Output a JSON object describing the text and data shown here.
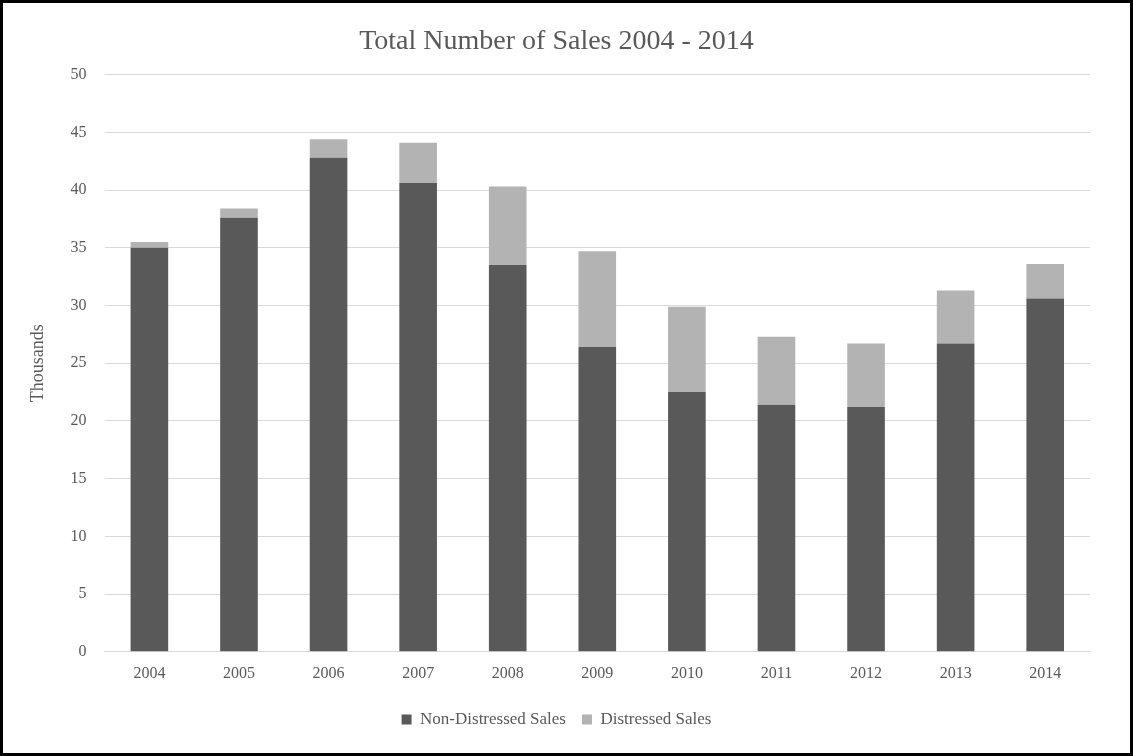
{
  "chart_data": {
    "type": "bar",
    "title": "Total Number of Sales 2004 - 2014",
    "ylabel": "Thousands",
    "categories": [
      "2004",
      "2005",
      "2006",
      "2007",
      "2008",
      "2009",
      "2010",
      "2011",
      "2012",
      "2013",
      "2014"
    ],
    "stacked": true,
    "series": [
      {
        "name": "Non-Distressed Sales",
        "color": "#595959",
        "values": [
          35,
          37.6,
          42.8,
          40.6,
          33.5,
          26.4,
          22.5,
          21.4,
          21.2,
          26.7,
          30.6
        ]
      },
      {
        "name": "Distressed Sales",
        "color": "#b3b3b3",
        "values": [
          0.5,
          0.8,
          1.6,
          3.5,
          6.8,
          8.3,
          7.4,
          5.9,
          5.5,
          4.6,
          3.0
        ]
      }
    ],
    "ylim": [
      0,
      50
    ],
    "yticks": [
      0,
      5,
      10,
      15,
      20,
      25,
      30,
      35,
      40,
      45,
      50
    ],
    "grid": "y",
    "legend": "bottom"
  }
}
